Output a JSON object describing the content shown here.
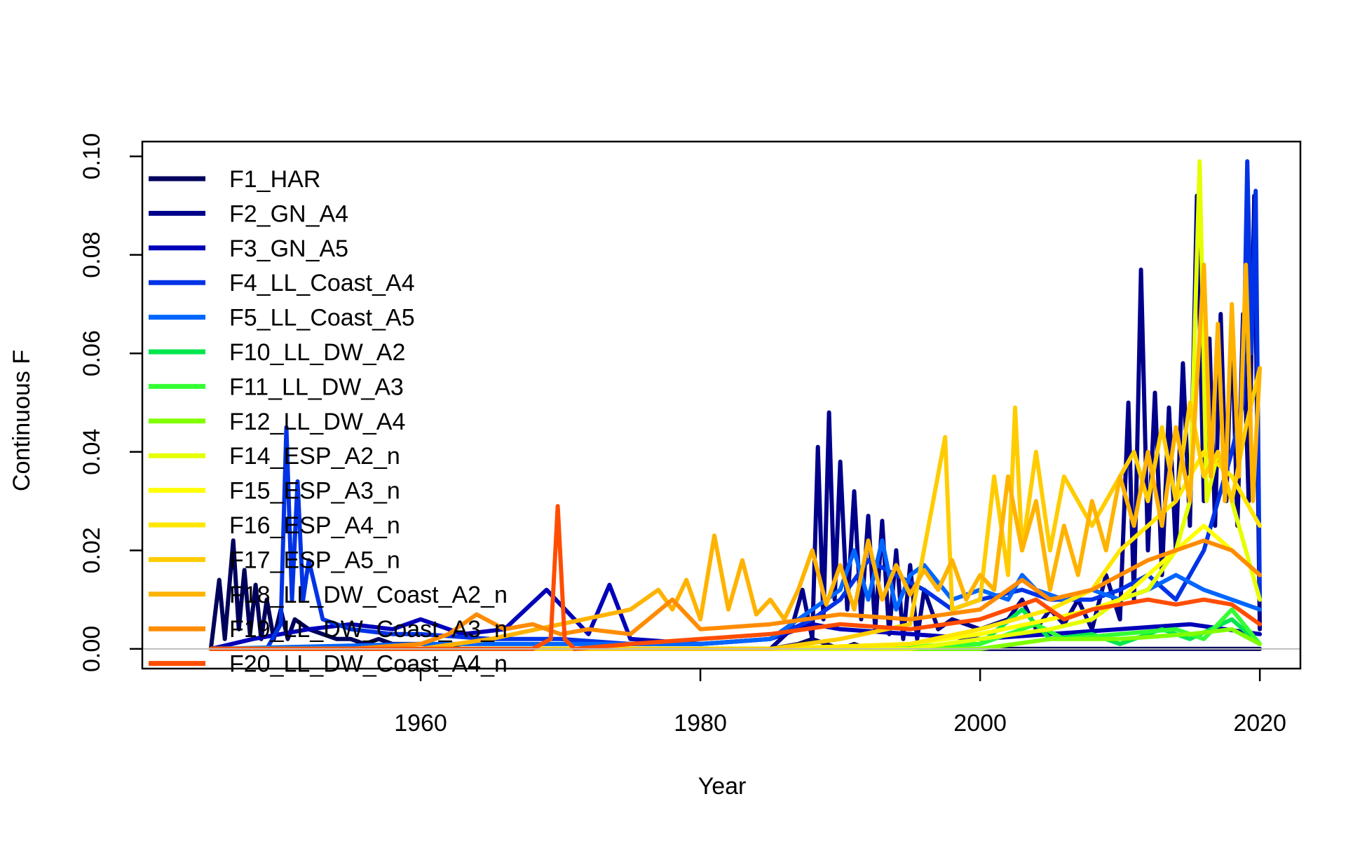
{
  "chart_data": {
    "type": "line",
    "title": "",
    "xlabel": "Year",
    "ylabel": "Continuous F",
    "xlim": [
      1940.1,
      2022.9
    ],
    "ylim": [
      -0.004,
      0.103
    ],
    "x_ticks": [
      1960,
      1980,
      2000,
      2020
    ],
    "x_tick_labels": [
      "1960",
      "1980",
      "2000",
      "2020"
    ],
    "y_ticks": [
      0,
      0.02,
      0.04,
      0.06,
      0.08,
      0.1
    ],
    "y_tick_labels": [
      "0.00",
      "0.02",
      "0.04",
      "0.06",
      "0.08",
      "0.10"
    ],
    "reference_line": {
      "y": 0,
      "color": "#bebebe"
    },
    "grid": false,
    "legend_position": "top-left",
    "series": [
      {
        "name": "F1_HAR",
        "color": "#00005c",
        "x": [
          1945,
          1945.6,
          1946,
          1946.6,
          1947,
          1947.4,
          1947.8,
          1948.2,
          1948.6,
          1949,
          1949.5,
          1950,
          1950.5,
          1951,
          1952,
          1953,
          1954,
          1955,
          1956,
          1957,
          1958,
          1959,
          1960,
          1961,
          1963,
          1965,
          1968,
          1970,
          1975,
          1980,
          1985,
          1987,
          1988,
          1989,
          1990,
          1991,
          1992,
          1995,
          2000,
          2005,
          2010,
          2015,
          2020
        ],
        "y": [
          0,
          0.014,
          0.002,
          0.022,
          0.004,
          0.016,
          0.003,
          0.013,
          0.002,
          0.01,
          0.002,
          0.008,
          0.002,
          0.006,
          0.004,
          0.003,
          0.002,
          0.002,
          0.001,
          0.002,
          0.001,
          0.001,
          0.001,
          0.001,
          0,
          0,
          0,
          0,
          0,
          0,
          0,
          0.001,
          0.002,
          0.001,
          0,
          0.001,
          0,
          0,
          0,
          0,
          0,
          0,
          0
        ]
      },
      {
        "name": "F2_GN_A4",
        "color": "#00008a",
        "x": [
          1945,
          1960,
          1970,
          1980,
          1985,
          1986.5,
          1987.3,
          1988,
          1988.4,
          1988.8,
          1989.2,
          1989.6,
          1990,
          1990.5,
          1991,
          1991.5,
          1992,
          1992.5,
          1993,
          1993.5,
          1994,
          1994.5,
          1995,
          1995.5,
          1996,
          1997,
          1998,
          2000,
          2002,
          2003,
          2004,
          2005,
          2006,
          2007,
          2008,
          2009,
          2010,
          2010.6,
          2011,
          2011.5,
          2012,
          2012.5,
          2013,
          2013.5,
          2014,
          2014.5,
          2015,
          2015.5,
          2016,
          2016.4,
          2016.8,
          2017.2,
          2017.6,
          2018,
          2018.4,
          2018.8,
          2019.2,
          2019.6,
          2020
        ],
        "y": [
          0,
          0,
          0,
          0,
          0,
          0.004,
          0.012,
          0.002,
          0.041,
          0.006,
          0.048,
          0.01,
          0.038,
          0.008,
          0.032,
          0.006,
          0.027,
          0.004,
          0.026,
          0.003,
          0.02,
          0.002,
          0.017,
          0.002,
          0.012,
          0.004,
          0.006,
          0.004,
          0.006,
          0.01,
          0.004,
          0.008,
          0.005,
          0.01,
          0.004,
          0.015,
          0.006,
          0.05,
          0.01,
          0.077,
          0.02,
          0.052,
          0.015,
          0.049,
          0.02,
          0.058,
          0.025,
          0.092,
          0.03,
          0.063,
          0.025,
          0.068,
          0.03,
          0.066,
          0.025,
          0.068,
          0.03,
          0.092,
          0.004
        ]
      },
      {
        "name": "F3_GN_A5",
        "color": "#0000b8",
        "x": [
          1945,
          1948,
          1950,
          1952,
          1955,
          1958,
          1960,
          1963,
          1966,
          1969,
          1972,
          1973.5,
          1975,
          1980,
          1985,
          1988,
          1990,
          1995,
          2000,
          2005,
          2010,
          2015,
          2020
        ],
        "y": [
          0,
          0.002,
          0.003,
          0.004,
          0.005,
          0.004,
          0.006,
          0.003,
          0.004,
          0.012,
          0.003,
          0.013,
          0.002,
          0.001,
          0.002,
          0.005,
          0.004,
          0.003,
          0.002,
          0.003,
          0.004,
          0.005,
          0.003
        ]
      },
      {
        "name": "F4_LL_Coast_A4",
        "color": "#0033e6",
        "x": [
          1945,
          1949,
          1950,
          1950.4,
          1950.8,
          1951.2,
          1951.6,
          1952,
          1953,
          1955,
          1958,
          1960,
          1965,
          1970,
          1975,
          1980,
          1985,
          1988,
          1990,
          1992,
          1994,
          1996,
          1998,
          2000,
          2003,
          2005,
          2008,
          2010,
          2012,
          2014,
          2016,
          2017,
          2018,
          2018.8,
          2019.1,
          2019.4,
          2019.7,
          2020
        ],
        "y": [
          0,
          0,
          0.005,
          0.045,
          0.01,
          0.034,
          0.01,
          0.018,
          0.006,
          0.004,
          0.003,
          0.003,
          0.002,
          0.002,
          0.001,
          0.001,
          0.002,
          0.006,
          0.01,
          0.018,
          0.015,
          0.012,
          0.008,
          0.01,
          0.012,
          0.01,
          0.01,
          0.012,
          0.015,
          0.01,
          0.02,
          0.03,
          0.04,
          0.05,
          0.099,
          0.06,
          0.093,
          0.01
        ]
      },
      {
        "name": "F5_LL_Coast_A5",
        "color": "#0066ff",
        "x": [
          1945,
          1960,
          1970,
          1980,
          1985,
          1988,
          1990,
          1991,
          1992,
          1993,
          1994,
          1995,
          1996,
          1998,
          2000,
          2002,
          2003,
          2004,
          2006,
          2008,
          2010,
          2012,
          2014,
          2016,
          2018,
          2020
        ],
        "y": [
          0,
          0.001,
          0.001,
          0.001,
          0.002,
          0.008,
          0.012,
          0.02,
          0.01,
          0.022,
          0.008,
          0.015,
          0.017,
          0.01,
          0.012,
          0.01,
          0.015,
          0.012,
          0.01,
          0.012,
          0.01,
          0.012,
          0.015,
          0.012,
          0.01,
          0.008
        ]
      },
      {
        "name": "F10_LL_DW_A2",
        "color": "#00e64d",
        "x": [
          1945,
          1980,
          1990,
          2000,
          2003,
          2005,
          2008,
          2010,
          2013,
          2015,
          2018,
          2020
        ],
        "y": [
          0,
          0,
          0,
          0.001,
          0.008,
          0.002,
          0.003,
          0.001,
          0.004,
          0.002,
          0.006,
          0.001
        ]
      },
      {
        "name": "F11_LL_DW_A3",
        "color": "#33ff33",
        "x": [
          1945,
          1980,
          1990,
          2000,
          2004,
          2006,
          2010,
          2014,
          2016,
          2018,
          2020
        ],
        "y": [
          0,
          0,
          0,
          0.001,
          0.005,
          0.002,
          0.003,
          0.004,
          0.002,
          0.008,
          0.001
        ]
      },
      {
        "name": "F12_LL_DW_A4",
        "color": "#80ff00",
        "x": [
          1945,
          1980,
          1990,
          2000,
          2005,
          2010,
          2015,
          2018,
          2020
        ],
        "y": [
          0,
          0,
          0,
          0,
          0.002,
          0.002,
          0.003,
          0.004,
          0.001
        ]
      },
      {
        "name": "F14_ESP_A2_n",
        "color": "#e6ff00",
        "x": [
          1945,
          1985,
          1995,
          2000,
          2005,
          2008,
          2010,
          2012,
          2014,
          2015,
          2015.7,
          2016.2,
          2017,
          2018,
          2019,
          2020
        ],
        "y": [
          0,
          0,
          0,
          0.002,
          0.004,
          0.006,
          0.01,
          0.012,
          0.02,
          0.03,
          0.099,
          0.03,
          0.04,
          0.03,
          0.02,
          0.01
        ]
      },
      {
        "name": "F15_ESP_A3_n",
        "color": "#ffff00",
        "x": [
          1945,
          1985,
          1995,
          2000,
          2005,
          2008,
          2010,
          2012,
          2014,
          2016,
          2018,
          2020
        ],
        "y": [
          0,
          0,
          0.001,
          0.003,
          0.006,
          0.008,
          0.01,
          0.015,
          0.02,
          0.025,
          0.02,
          0.015
        ]
      },
      {
        "name": "F16_ESP_A4_n",
        "color": "#ffe600",
        "x": [
          1945,
          1985,
          1995,
          2000,
          2005,
          2008,
          2010,
          2012,
          2014,
          2016,
          2018,
          2020
        ],
        "y": [
          0,
          0,
          0.001,
          0.004,
          0.008,
          0.012,
          0.02,
          0.025,
          0.03,
          0.04,
          0.035,
          0.025
        ]
      },
      {
        "name": "F17_ESP_A5_n",
        "color": "#ffcc00",
        "x": [
          1945,
          1985,
          1990,
          1995,
          1997.5,
          1998,
          2000,
          2001,
          2002,
          2002.5,
          2003,
          2004,
          2005,
          2006,
          2008,
          2009,
          2010,
          2011,
          2012,
          2013,
          2014,
          2015,
          2016,
          2017,
          2018,
          2019,
          2020
        ],
        "y": [
          0,
          0,
          0.002,
          0.005,
          0.043,
          0.008,
          0.01,
          0.035,
          0.015,
          0.049,
          0.02,
          0.04,
          0.02,
          0.035,
          0.025,
          0.03,
          0.035,
          0.04,
          0.03,
          0.045,
          0.03,
          0.05,
          0.035,
          0.04,
          0.03,
          0.045,
          0.057
        ]
      },
      {
        "name": "F18_LL_DW_Coast_A2_n",
        "color": "#ffb300",
        "x": [
          1945,
          1960,
          1965,
          1970,
          1975,
          1977,
          1978,
          1979,
          1980,
          1981,
          1982,
          1983,
          1984,
          1985,
          1986,
          1987,
          1988,
          1989,
          1990,
          1991,
          1992,
          1993,
          1994,
          1995,
          1996,
          1997,
          1998,
          1999,
          2000,
          2001,
          2002,
          2003,
          2004,
          2005,
          2006,
          2007,
          2008,
          2009,
          2010,
          2011,
          2012,
          2013,
          2014,
          2015,
          2016,
          2016.5,
          2017,
          2017.5,
          2018,
          2018.5,
          2019,
          2019.5,
          2020
        ],
        "y": [
          0,
          0,
          0.002,
          0.005,
          0.008,
          0.012,
          0.008,
          0.014,
          0.006,
          0.023,
          0.008,
          0.018,
          0.007,
          0.01,
          0.006,
          0.012,
          0.02,
          0.009,
          0.017,
          0.008,
          0.022,
          0.01,
          0.017,
          0.011,
          0.016,
          0.012,
          0.018,
          0.01,
          0.015,
          0.012,
          0.035,
          0.02,
          0.03,
          0.012,
          0.025,
          0.015,
          0.03,
          0.02,
          0.035,
          0.025,
          0.04,
          0.025,
          0.045,
          0.03,
          0.078,
          0.035,
          0.066,
          0.03,
          0.07,
          0.035,
          0.078,
          0.03,
          0.057
        ]
      },
      {
        "name": "F19_LL_DW_Coast_A3_n",
        "color": "#ff8c00",
        "x": [
          1945,
          1955,
          1960,
          1962,
          1964,
          1966,
          1968,
          1970,
          1972,
          1975,
          1978,
          1980,
          1985,
          1990,
          1995,
          2000,
          2003,
          2005,
          2008,
          2010,
          2012,
          2014,
          2016,
          2018,
          2020
        ],
        "y": [
          0,
          0,
          0.001,
          0.003,
          0.007,
          0.004,
          0.005,
          0.003,
          0.004,
          0.003,
          0.01,
          0.004,
          0.005,
          0.007,
          0.006,
          0.008,
          0.014,
          0.01,
          0.012,
          0.015,
          0.018,
          0.02,
          0.022,
          0.02,
          0.015
        ]
      },
      {
        "name": "F20_LL_DW_Coast_A4_n",
        "color": "#ff4d00",
        "x": [
          1945,
          1960,
          1968,
          1969.3,
          1969.8,
          1970.3,
          1971,
          1975,
          1980,
          1985,
          1990,
          1995,
          2000,
          2002,
          2004,
          2006,
          2008,
          2010,
          2012,
          2014,
          2016,
          2018,
          2020
        ],
        "y": [
          0,
          0,
          0,
          0.002,
          0.029,
          0.002,
          0,
          0.001,
          0.002,
          0.003,
          0.005,
          0.004,
          0.006,
          0.008,
          0.01,
          0.006,
          0.008,
          0.009,
          0.01,
          0.009,
          0.01,
          0.009,
          0.005
        ]
      }
    ]
  }
}
